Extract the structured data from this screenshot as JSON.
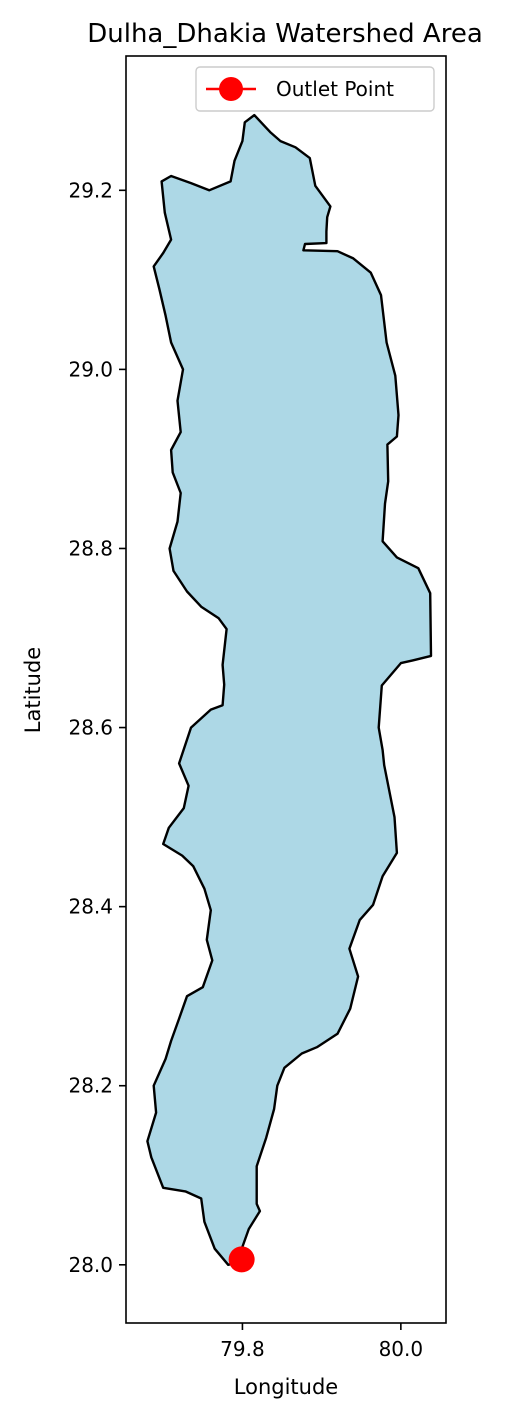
{
  "chart_data": {
    "type": "map",
    "title": "Dulha_Dhakia Watershed Area",
    "xlabel": "Longitude",
    "ylabel": "Latitude",
    "xlim": [
      79.653,
      80.057
    ],
    "ylim": [
      27.935,
      29.35
    ],
    "xticks": [
      {
        "value": 79.8,
        "label": "79.8"
      },
      {
        "value": 80.0,
        "label": "80.0"
      }
    ],
    "yticks": [
      {
        "value": 28.0,
        "label": "28.0"
      },
      {
        "value": 28.2,
        "label": "28.2"
      },
      {
        "value": 28.4,
        "label": "28.4"
      },
      {
        "value": 28.6,
        "label": "28.6"
      },
      {
        "value": 28.8,
        "label": "28.8"
      },
      {
        "value": 29.0,
        "label": "29.0"
      },
      {
        "value": 29.2,
        "label": "29.2"
      }
    ],
    "legend": {
      "placement": "upper-right",
      "entries": [
        {
          "label": "Outlet Point"
        }
      ]
    },
    "watershed": {
      "fill_color": "#add8e6",
      "edge_color": "#000000",
      "boundary": [
        [
          79.815,
          29.284
        ],
        [
          79.835,
          29.265
        ],
        [
          79.848,
          29.255
        ],
        [
          79.867,
          29.248
        ],
        [
          79.885,
          29.236
        ],
        [
          79.892,
          29.205
        ],
        [
          79.911,
          29.182
        ],
        [
          79.907,
          29.17
        ],
        [
          79.906,
          29.154
        ],
        [
          79.906,
          29.141
        ],
        [
          79.879,
          29.14
        ],
        [
          79.877,
          29.133
        ],
        [
          79.92,
          29.132
        ],
        [
          79.94,
          29.124
        ],
        [
          79.962,
          29.108
        ],
        [
          79.975,
          29.083
        ],
        [
          79.982,
          29.03
        ],
        [
          79.993,
          28.993
        ],
        [
          79.997,
          28.949
        ],
        [
          79.995,
          28.925
        ],
        [
          79.983,
          28.916
        ],
        [
          79.984,
          28.875
        ],
        [
          79.98,
          28.85
        ],
        [
          79.977,
          28.808
        ],
        [
          79.995,
          28.79
        ],
        [
          80.022,
          28.778
        ],
        [
          80.037,
          28.75
        ],
        [
          80.038,
          28.68
        ],
        [
          80.015,
          28.675
        ],
        [
          80.0,
          28.672
        ],
        [
          79.976,
          28.647
        ],
        [
          79.972,
          28.6
        ],
        [
          79.977,
          28.575
        ],
        [
          79.979,
          28.558
        ],
        [
          79.992,
          28.5
        ],
        [
          79.995,
          28.46
        ],
        [
          79.977,
          28.434
        ],
        [
          79.965,
          28.402
        ],
        [
          79.948,
          28.385
        ],
        [
          79.935,
          28.353
        ],
        [
          79.946,
          28.322
        ],
        [
          79.936,
          28.286
        ],
        [
          79.92,
          28.258
        ],
        [
          79.894,
          28.243
        ],
        [
          79.875,
          28.236
        ],
        [
          79.853,
          28.22
        ],
        [
          79.844,
          28.2
        ],
        [
          79.84,
          28.174
        ],
        [
          79.83,
          28.142
        ],
        [
          79.818,
          28.11
        ],
        [
          79.818,
          28.068
        ],
        [
          79.822,
          28.06
        ],
        [
          79.808,
          28.04
        ],
        [
          79.8,
          28.02
        ],
        [
          79.795,
          28.003
        ],
        [
          79.782,
          28.0
        ],
        [
          79.765,
          28.018
        ],
        [
          79.752,
          28.048
        ],
        [
          79.748,
          28.074
        ],
        [
          79.728,
          28.082
        ],
        [
          79.7,
          28.086
        ],
        [
          79.685,
          28.12
        ],
        [
          79.68,
          28.138
        ],
        [
          79.691,
          28.17
        ],
        [
          79.688,
          28.2
        ],
        [
          79.703,
          28.23
        ],
        [
          79.71,
          28.25
        ],
        [
          79.72,
          28.275
        ],
        [
          79.73,
          28.3
        ],
        [
          79.75,
          28.31
        ],
        [
          79.762,
          28.34
        ],
        [
          79.755,
          28.363
        ],
        [
          79.76,
          28.396
        ],
        [
          79.752,
          28.42
        ],
        [
          79.738,
          28.445
        ],
        [
          79.724,
          28.457
        ],
        [
          79.7,
          28.47
        ],
        [
          79.707,
          28.488
        ],
        [
          79.726,
          28.51
        ],
        [
          79.732,
          28.535
        ],
        [
          79.72,
          28.56
        ],
        [
          79.735,
          28.6
        ],
        [
          79.76,
          28.62
        ],
        [
          79.775,
          28.625
        ],
        [
          79.777,
          28.648
        ],
        [
          79.775,
          28.67
        ],
        [
          79.78,
          28.71
        ],
        [
          79.77,
          28.722
        ],
        [
          79.748,
          28.735
        ],
        [
          79.73,
          28.752
        ],
        [
          79.713,
          28.775
        ],
        [
          79.708,
          28.8
        ],
        [
          79.718,
          28.83
        ],
        [
          79.722,
          28.862
        ],
        [
          79.712,
          28.885
        ],
        [
          79.71,
          28.91
        ],
        [
          79.722,
          28.93
        ],
        [
          79.718,
          28.965
        ],
        [
          79.725,
          29.0
        ],
        [
          79.71,
          29.03
        ],
        [
          79.703,
          29.06
        ],
        [
          79.695,
          29.09
        ],
        [
          79.688,
          29.115
        ],
        [
          79.7,
          29.13
        ],
        [
          79.71,
          29.145
        ],
        [
          79.702,
          29.175
        ],
        [
          79.698,
          29.21
        ],
        [
          79.71,
          29.216
        ],
        [
          79.735,
          29.208
        ],
        [
          79.758,
          29.2
        ],
        [
          79.785,
          29.21
        ],
        [
          79.79,
          29.233
        ],
        [
          79.8,
          29.255
        ],
        [
          79.803,
          29.276
        ]
      ]
    },
    "outlet_point": {
      "lon": 79.799,
      "lat": 28.006,
      "color": "#ff0000"
    }
  }
}
